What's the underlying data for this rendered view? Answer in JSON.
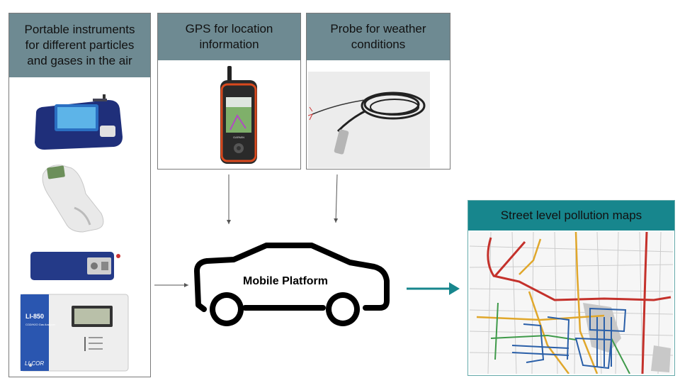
{
  "panels": {
    "instruments": {
      "title": "Portable instruments\nfor different particles\nand gases in the air"
    },
    "gps": {
      "title": "GPS for location\ninformation"
    },
    "probe": {
      "title": "Probe for weather\nconditions"
    },
    "maps": {
      "title": "Street level pollution maps"
    }
  },
  "platform": {
    "label": "Mobile Platform"
  },
  "devices": {
    "li850_model": "LI-850",
    "li850_sub": "CO2/H2O Gas Analyzer",
    "li850_brand": "LI-COR",
    "gps_brand": "GARMIN"
  },
  "colors": {
    "header": "#6e8a92",
    "maps_header": "#17868d",
    "arrow_teal": "#17868d",
    "arrow_gray": "#555555"
  }
}
